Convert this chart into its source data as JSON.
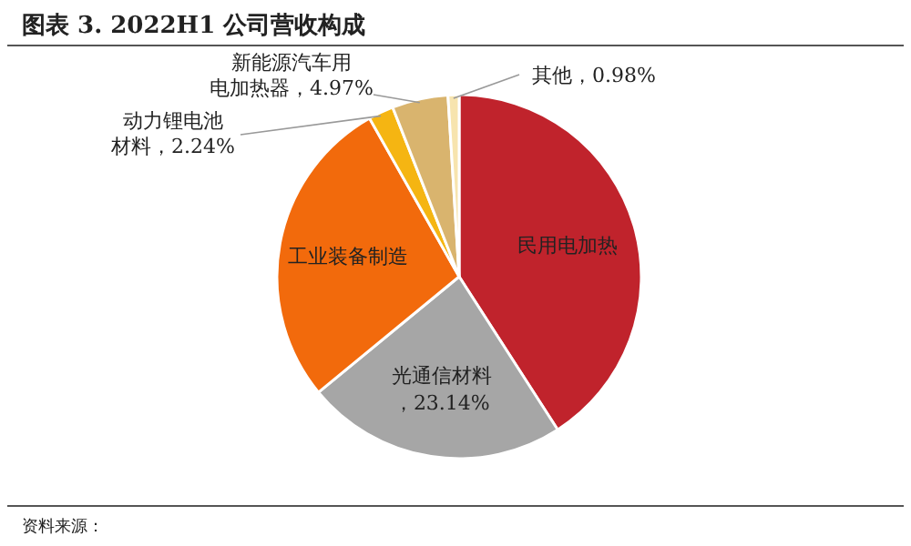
{
  "chart_data": {
    "type": "pie",
    "title": "图表 3.  2022H1 公司营收构成",
    "categories": [
      "民用电加热",
      "光通信材料",
      "工业装备制造",
      "动力锂电池材料",
      "新能源汽车用电加热器",
      "其他"
    ],
    "values": [
      40.9,
      23.14,
      27.77,
      2.24,
      4.97,
      0.98
    ],
    "value_labels": [
      null,
      "，23.14%",
      null,
      "，2.24%",
      "，4.97%",
      "，0.98%"
    ],
    "colors": [
      "#c0232c",
      "#a6a6a6",
      "#f26a0c",
      "#f5b512",
      "#d9b46e",
      "#f7e4ae"
    ],
    "annotations": [
      "资料来源："
    ]
  }
}
